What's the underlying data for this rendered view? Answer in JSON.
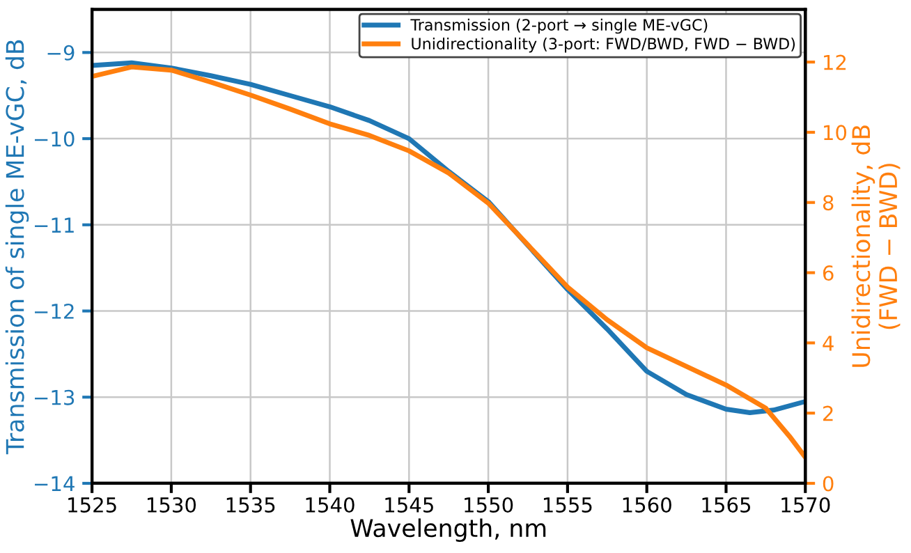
{
  "chart_data": {
    "type": "line",
    "xlabel": "Wavelength, nm",
    "ylabel": "Transmission of single ME-vGC, dB",
    "y2label": "Unidirectionality, dB\n(FWD − BWD)",
    "x": [
      1525,
      1527.5,
      1530,
      1532.5,
      1535,
      1537.5,
      1540,
      1542.5,
      1545,
      1547.5,
      1550,
      1552.5,
      1555,
      1557.5,
      1560,
      1562.5,
      1565,
      1566.5,
      1568,
      1570
    ],
    "series": [
      {
        "name": "Transmission (2-port → single ME-vGC)",
        "color": "#1f77b4",
        "values": [
          -9.15,
          -9.12,
          -9.18,
          -9.27,
          -9.37,
          -9.5,
          -9.63,
          -9.79,
          -10.0,
          -10.38,
          -10.73,
          -11.24,
          -11.75,
          -12.21,
          -12.7,
          -12.97,
          -13.14,
          -13.18,
          -13.15,
          -13.05
        ]
      },
      {
        "name": "Unidirectionality (3-port: FWD/BWD, FWD − BWD)",
        "color": "#ff7f0e",
        "axis": "y2",
        "x": [
          1525,
          1527.5,
          1530,
          1532.5,
          1535,
          1537.5,
          1540,
          1542.5,
          1545,
          1547.5,
          1550,
          1552.5,
          1555,
          1557.5,
          1560,
          1562.5,
          1565,
          1567.5,
          1569,
          1570
        ],
        "values": [
          11.59,
          11.86,
          11.77,
          11.43,
          11.06,
          10.66,
          10.24,
          9.91,
          9.47,
          8.84,
          7.98,
          6.79,
          5.59,
          4.66,
          3.86,
          3.33,
          2.8,
          2.14,
          1.34,
          0.74
        ]
      }
    ],
    "xlim": [
      1525,
      1570
    ],
    "xticks": [
      1525,
      1530,
      1535,
      1540,
      1545,
      1550,
      1555,
      1560,
      1565,
      1570
    ],
    "ylim": [
      -14,
      -8.5
    ],
    "yticks": [
      -14,
      -13,
      -12,
      -11,
      -10,
      -9
    ],
    "y2lim": [
      0,
      13.5
    ],
    "y2ticks": [
      0,
      2,
      4,
      6,
      8,
      10,
      12
    ],
    "grid": true,
    "legend": "top right",
    "line_style": "solid"
  }
}
